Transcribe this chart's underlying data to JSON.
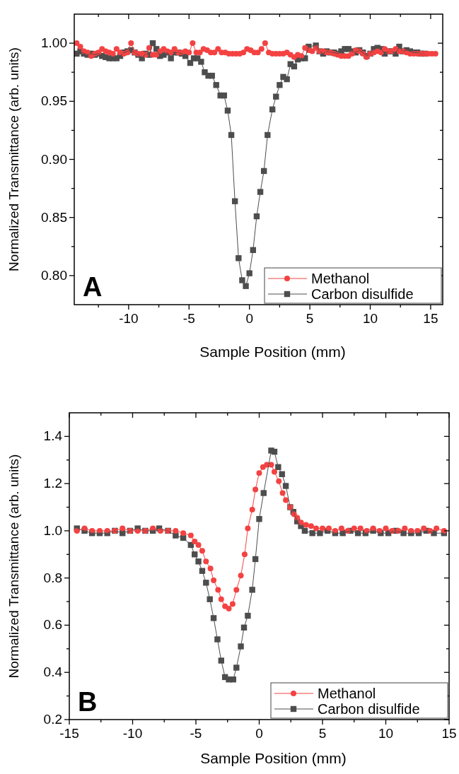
{
  "chart_data": [
    {
      "type": "line",
      "xlabel": "Sample Position (mm)",
      "ylabel": "Normalized Transmittance (arb. units)",
      "legend": "bottom right",
      "annotations": [
        "A"
      ],
      "xlim": [
        -14.5,
        16
      ],
      "xticks": [
        {
          "value": -12.5,
          "label": null
        },
        -10,
        {
          "value": -7.5,
          "label": null
        },
        -5,
        {
          "value": -2.5,
          "label": null
        },
        0,
        {
          "value": 2.5,
          "label": null
        },
        5,
        {
          "value": 7.5,
          "label": null
        },
        10,
        {
          "value": 12.5,
          "label": null
        },
        15
      ],
      "ylim": [
        0.775,
        1.025
      ],
      "yticks": [
        {
          "value": 0.8,
          "label": "0.80"
        },
        {
          "value": 0.825,
          "label": null
        },
        {
          "value": 0.85,
          "label": "0.85"
        },
        {
          "value": 0.875,
          "label": null
        },
        {
          "value": 0.9,
          "label": "0.90"
        },
        {
          "value": 0.925,
          "label": null
        },
        {
          "value": 0.95,
          "label": "0.95"
        },
        {
          "value": 0.975,
          "label": null
        },
        {
          "value": 1,
          "label": "1.00"
        }
      ],
      "series": [
        {
          "name": "Methanol",
          "color": "#f44242",
          "marker": "circle",
          "x": [
            -14.3,
            -14.0,
            -13.7,
            -13.4,
            -13.1,
            -12.8,
            -12.5,
            -12.2,
            -11.9,
            -11.6,
            -11.3,
            -11.0,
            -10.7,
            -10.4,
            -10.1,
            -9.8,
            -9.5,
            -9.2,
            -8.9,
            -8.6,
            -8.3,
            -8.0,
            -7.7,
            -7.4,
            -7.1,
            -6.8,
            -6.5,
            -6.2,
            -5.9,
            -5.6,
            -5.3,
            -5.0,
            -4.7,
            -4.4,
            -4.1,
            -3.8,
            -3.5,
            -3.2,
            -2.9,
            -2.6,
            -2.3,
            -2.0,
            -1.7,
            -1.4,
            -1.1,
            -0.8,
            -0.5,
            -0.2,
            0.1,
            0.4,
            0.7,
            1.0,
            1.3,
            1.6,
            1.9,
            2.2,
            2.5,
            2.8,
            3.1,
            3.4,
            3.7,
            4.0,
            4.3,
            4.6,
            4.9,
            5.2,
            5.5,
            5.8,
            6.1,
            6.4,
            6.7,
            7.0,
            7.3,
            7.6,
            7.9,
            8.2,
            8.5,
            8.8,
            9.1,
            9.4,
            9.7,
            10.0,
            10.3,
            10.6,
            10.9,
            11.2,
            11.5,
            11.8,
            12.1,
            12.4,
            12.7,
            13.0,
            13.3,
            13.6,
            13.9,
            14.2,
            14.5,
            14.8,
            15.1,
            15.4
          ],
          "values": [
            1.0,
            0.997,
            0.993,
            0.992,
            0.989,
            0.991,
            0.992,
            0.995,
            0.993,
            0.992,
            0.991,
            0.995,
            0.992,
            0.991,
            0.992,
            1.0,
            0.992,
            0.991,
            0.991,
            0.99,
            0.996,
            0.99,
            0.99,
            0.993,
            0.995,
            0.993,
            0.992,
            0.995,
            0.992,
            0.992,
            0.993,
            0.992,
            1.0,
            0.992,
            0.992,
            0.995,
            0.994,
            0.992,
            0.992,
            0.995,
            0.992,
            0.992,
            0.991,
            0.991,
            0.991,
            0.991,
            0.992,
            0.995,
            0.994,
            0.992,
            0.992,
            0.995,
            1.0,
            0.992,
            0.991,
            0.991,
            0.991,
            0.991,
            0.992,
            0.99,
            0.988,
            0.99,
            0.989,
            0.996,
            0.994,
            0.993,
            0.996,
            0.993,
            0.993,
            0.992,
            0.992,
            0.991,
            0.99,
            0.989,
            0.989,
            0.989,
            0.991,
            0.994,
            0.993,
            0.991,
            0.988,
            0.991,
            0.992,
            0.993,
            0.992,
            0.995,
            0.993,
            0.993,
            0.995,
            0.993,
            0.993,
            0.992,
            0.991,
            0.991,
            0.991,
            0.991,
            0.991,
            0.991,
            0.991,
            0.991
          ]
        },
        {
          "name": "Carbon disulfide",
          "color": "#4d4d4d",
          "marker": "square",
          "x": [
            -14.3,
            -14.0,
            -13.7,
            -13.4,
            -13.1,
            -12.8,
            -12.5,
            -12.2,
            -11.9,
            -11.6,
            -11.3,
            -11.0,
            -10.7,
            -10.4,
            -10.1,
            -9.8,
            -9.5,
            -9.2,
            -8.9,
            -8.6,
            -8.3,
            -8.0,
            -7.7,
            -7.4,
            -7.1,
            -6.8,
            -6.5,
            -6.2,
            -5.9,
            -5.6,
            -5.3,
            -4.9,
            -4.6,
            -4.3,
            -4.0,
            -3.7,
            -3.4,
            -3.1,
            -2.75,
            -2.4,
            -2.1,
            -1.8,
            -1.5,
            -1.2,
            -0.9,
            -0.6,
            -0.3,
            0.0,
            0.3,
            0.6,
            0.9,
            1.2,
            1.5,
            1.9,
            2.2,
            2.5,
            2.8,
            3.1,
            3.4,
            3.7,
            4.0,
            4.3,
            4.6,
            4.9,
            5.5,
            5.8,
            6.1,
            6.4,
            6.7,
            7.0,
            7.3,
            7.6,
            7.9,
            8.2,
            8.5,
            8.8,
            9.1,
            9.4,
            9.7,
            10.0,
            10.3,
            10.6,
            10.9,
            11.2,
            11.5,
            11.8,
            12.1,
            12.4,
            12.7,
            13.0,
            13.3,
            13.6,
            13.9,
            14.2,
            14.5
          ],
          "values": [
            0.991,
            0.993,
            0.991,
            0.99,
            0.991,
            0.99,
            0.991,
            0.989,
            0.988,
            0.987,
            0.987,
            0.987,
            0.989,
            0.992,
            0.993,
            0.994,
            0.992,
            0.99,
            0.987,
            0.991,
            0.99,
            1.0,
            0.995,
            0.989,
            0.99,
            0.992,
            0.987,
            0.992,
            0.992,
            0.991,
            0.989,
            0.983,
            0.987,
            0.987,
            0.984,
            0.975,
            0.972,
            0.972,
            0.964,
            0.955,
            0.955,
            0.942,
            0.921,
            0.864,
            0.815,
            0.796,
            0.791,
            0.802,
            0.822,
            0.851,
            0.872,
            0.89,
            0.921,
            0.943,
            0.954,
            0.964,
            0.971,
            0.969,
            0.982,
            0.98,
            0.986,
            0.987,
            0.987,
            0.997,
            0.998,
            0.993,
            0.991,
            0.993,
            0.992,
            0.992,
            0.991,
            0.993,
            0.995,
            0.995,
            0.993,
            0.992,
            0.994,
            0.992,
            0.989,
            0.991,
            0.995,
            0.996,
            0.995,
            0.991,
            0.993,
            0.993,
            0.991,
            0.997,
            0.993,
            0.994,
            0.993,
            0.992,
            0.992,
            0.991,
            0.991
          ]
        }
      ]
    },
    {
      "type": "line",
      "xlabel": "Sample Position (mm)",
      "ylabel": "Normalized Transmittance (arb. units)",
      "legend": "bottom right",
      "annotations": [
        "B"
      ],
      "xlim": [
        -15,
        15
      ],
      "xticks": [
        -15,
        {
          "value": -12.5,
          "label": null
        },
        -10,
        {
          "value": -7.5,
          "label": null
        },
        -5,
        {
          "value": -2.5,
          "label": null
        },
        0,
        {
          "value": 2.5,
          "label": null
        },
        5,
        {
          "value": 7.5,
          "label": null
        },
        10,
        {
          "value": 12.5,
          "label": null
        },
        15
      ],
      "ylim": [
        0.2,
        1.5
      ],
      "yticks": [
        0.2,
        {
          "value": 0.3,
          "label": null
        },
        0.4,
        {
          "value": 0.5,
          "label": null
        },
        0.6,
        {
          "value": 0.7,
          "label": null
        },
        0.8,
        {
          "value": 0.9,
          "label": null
        },
        {
          "value": 1,
          "label": "1.0"
        },
        {
          "value": 1.1,
          "label": null
        },
        1.2,
        {
          "value": 1.3,
          "label": null
        },
        1.4
      ],
      "series": [
        {
          "name": "Methanol",
          "color": "#f44242",
          "marker": "circle",
          "x": [
            -14.4,
            -13.8,
            -13.2,
            -12.6,
            -12.0,
            -11.4,
            -10.8,
            -10.2,
            -9.6,
            -9.0,
            -8.4,
            -7.8,
            -7.2,
            -6.6,
            -6.0,
            -5.4,
            -5.1,
            -4.8,
            -4.5,
            -4.2,
            -3.85,
            -3.6,
            -3.25,
            -3.0,
            -2.7,
            -2.4,
            -2.1,
            -1.8,
            -1.45,
            -1.15,
            -0.9,
            -0.55,
            -0.3,
            0.0,
            0.3,
            0.6,
            0.95,
            1.2,
            1.55,
            1.85,
            2.1,
            2.45,
            2.75,
            3.0,
            3.3,
            3.7,
            4.1,
            4.5,
            5.0,
            5.5,
            6.0,
            6.5,
            7.0,
            7.5,
            8.0,
            8.5,
            9.0,
            9.5,
            10.0,
            10.5,
            11.0,
            11.5,
            12.0,
            12.5,
            13.0,
            13.5,
            14.0,
            14.6
          ],
          "values": [
            1.0,
            1.01,
            1.0,
            1.0,
            1.0,
            1.0,
            1.01,
            1.0,
            1.0,
            1.0,
            1.01,
            1.0,
            1.0,
            1.0,
            0.99,
            0.98,
            0.955,
            0.94,
            0.915,
            0.87,
            0.84,
            0.79,
            0.75,
            0.71,
            0.68,
            0.67,
            0.69,
            0.75,
            0.81,
            0.9,
            1.01,
            1.09,
            1.175,
            1.245,
            1.27,
            1.28,
            1.28,
            1.25,
            1.21,
            1.16,
            1.13,
            1.1,
            1.07,
            1.055,
            1.035,
            1.025,
            1.02,
            1.01,
            1.01,
            1.01,
            1.0,
            1.01,
            1.0,
            1.01,
            1.01,
            1.0,
            1.01,
            1.0,
            1.01,
            1.0,
            1.0,
            1.01,
            1.0,
            1.0,
            1.01,
            1.0,
            1.01,
            1.0
          ]
        },
        {
          "name": "Carbon disulfide",
          "color": "#4d4d4d",
          "marker": "square",
          "x": [
            -14.4,
            -13.8,
            -13.2,
            -12.6,
            -12.0,
            -11.4,
            -10.8,
            -10.2,
            -9.6,
            -9.0,
            -8.4,
            -7.9,
            -7.2,
            -6.6,
            -6.0,
            -5.4,
            -5.1,
            -4.8,
            -4.5,
            -4.2,
            -3.9,
            -3.6,
            -3.3,
            -3.0,
            -2.7,
            -2.4,
            -2.05,
            -1.8,
            -1.45,
            -1.2,
            -0.9,
            -0.55,
            -0.3,
            0.0,
            0.35,
            0.95,
            1.2,
            1.5,
            1.8,
            2.1,
            2.45,
            2.7,
            3.0,
            3.3,
            3.6,
            4.2,
            4.8,
            5.4,
            6.0,
            6.6,
            7.2,
            7.8,
            8.4,
            9.0,
            9.6,
            10.2,
            10.8,
            11.4,
            12.0,
            12.6,
            13.2,
            13.8,
            14.6
          ],
          "values": [
            1.01,
            1.0,
            0.99,
            0.99,
            0.99,
            1.0,
            0.99,
            1.0,
            1.01,
            1.0,
            1.0,
            1.01,
            1.0,
            0.98,
            0.97,
            0.94,
            0.9,
            0.87,
            0.83,
            0.78,
            0.71,
            0.63,
            0.54,
            0.45,
            0.38,
            0.37,
            0.37,
            0.42,
            0.51,
            0.59,
            0.64,
            0.75,
            0.88,
            1.05,
            1.16,
            1.34,
            1.335,
            1.27,
            1.24,
            1.19,
            1.1,
            1.08,
            1.04,
            1.02,
            1.0,
            0.99,
            0.99,
            1.0,
            0.99,
            0.99,
            1.0,
            0.99,
            0.99,
            1.0,
            0.99,
            0.99,
            1.0,
            0.99,
            0.99,
            0.99,
            1.0,
            0.99,
            0.99
          ]
        }
      ]
    }
  ]
}
